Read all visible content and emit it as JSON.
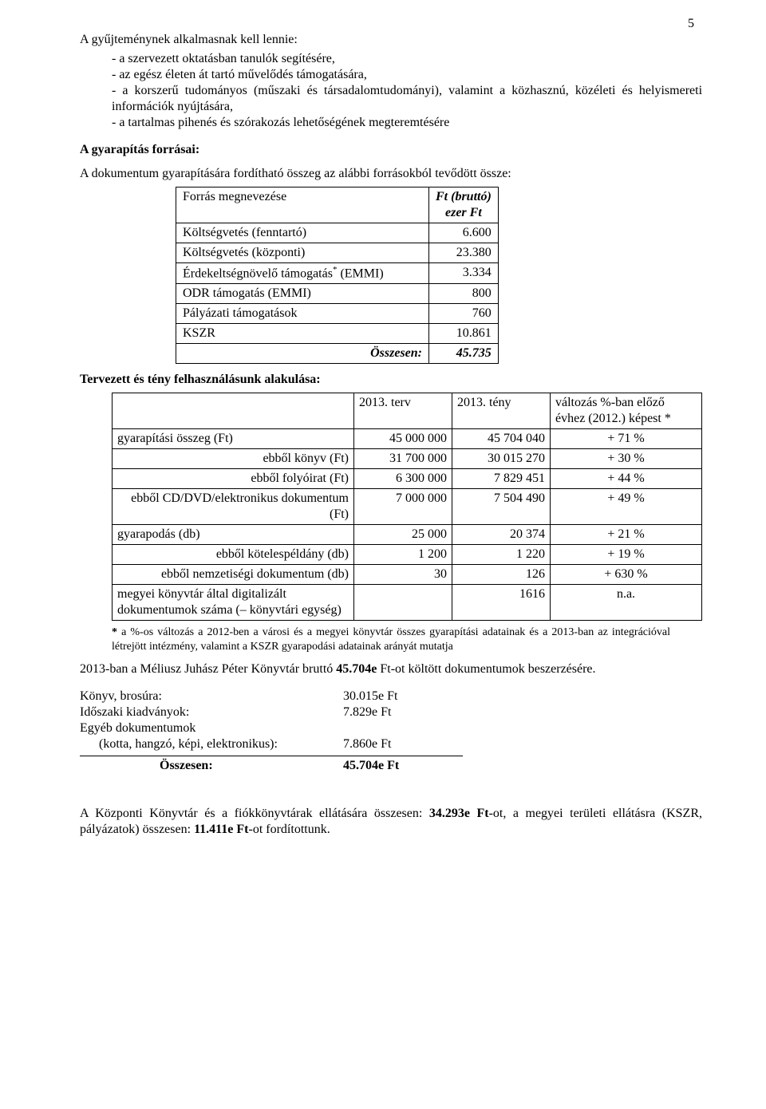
{
  "pageNumber": "5",
  "intro": {
    "lead": "A gyűjteménynek alkalmasnak kell lennie:",
    "items": [
      "a szervezett oktatásban tanulók segítésére,",
      "az egész életen át tartó művelődés támogatására,",
      "a korszerű tudományos (műszaki és társadalomtudományi), valamint a közhasznú, közéleti és helyismereti információk nyújtására,",
      "a tartalmas pihenés és szórakozás lehetőségének megteremtésére"
    ]
  },
  "sourcesHeading": "A gyarapítás forrásai:",
  "sourcesLead": "A dokumentum gyarapítására fordítható összeg az alábbi forrásokból tevődött össze:",
  "t1": {
    "headerLeft": "Forrás megnevezése",
    "headerRightLine1": "Ft (bruttó)",
    "headerRightLine2": "ezer Ft",
    "rows": [
      {
        "label": "Költségvetés (fenntartó)",
        "value": "6.600"
      },
      {
        "label": "Költségvetés (központi)",
        "value": "23.380"
      },
      {
        "label": "Érdekeltségnövelő támogatás<span class=\"sup\">*</span> (EMMI)",
        "html": true,
        "value": "3.334"
      },
      {
        "label": "ODR támogatás (EMMI)",
        "value": "800"
      },
      {
        "label": "Pályázati támogatások",
        "value": "760"
      },
      {
        "label": "KSZR",
        "value": "10.861"
      }
    ],
    "totalLabel": "Összesen:",
    "totalValue": "45.735"
  },
  "usageHeading": "Tervezett és tény felhasználásunk alakulása:",
  "t2": {
    "head": [
      "",
      "2013. terv",
      "2013. tény",
      "változás %-ban előző évhez (2012.) képest *"
    ],
    "rows": [
      {
        "label": "gyarapítási összeg (Ft)",
        "a": "45 000 000",
        "b": "45 704 040",
        "c": "+ 71 %"
      },
      {
        "label": "ebből könyv (Ft)",
        "indent": true,
        "a": "31 700 000",
        "b": "30 015 270",
        "c": "+ 30 %"
      },
      {
        "label": "ebből folyóirat (Ft)",
        "indent": true,
        "a": "6 300 000",
        "b": "7 829 451",
        "c": "+ 44 %"
      },
      {
        "label": "ebből CD/DVD/elektronikus dokumentum (Ft)",
        "indent": true,
        "a": "7 000 000",
        "b": "7 504 490",
        "c": "+ 49 %"
      },
      {
        "label": "gyarapodás (db)",
        "a": "25 000",
        "b": "20 374",
        "c": "+ 21 %"
      },
      {
        "label": "ebből kötelespéldány (db)",
        "indent": true,
        "a": "1 200",
        "b": "1 220",
        "c": "+ 19 %"
      },
      {
        "label": "ebből nemzetiségi dokumentum (db)",
        "indent": true,
        "a": "30",
        "b": "126",
        "c": "+ 630 %"
      },
      {
        "label": "megyei könyvtár által digitalizált dokumentumok száma (– könyvtári egység)",
        "a": "",
        "b": "1616",
        "c": "n.a.",
        "centerC": true
      }
    ]
  },
  "footnote": "* a %-os változás a 2012-ben a városi és a megyei könyvtár összes gyarapítási adatainak és a 2013-ban az integrációval létrejött intézmény, valamint a KSZR gyarapodási adatainak arányát mutatja",
  "spending2013": "2013-ban a Méliusz Juhász Péter Könyvtár bruttó <span class=\"bold\">45.704e</span> Ft-ot költött dokumentumok beszerzésére.",
  "spend": {
    "rows": [
      {
        "label": "Könyv, brosúra:",
        "value": "30.015e Ft"
      },
      {
        "label": "Időszaki kiadványok:",
        "value": "7.829e Ft"
      },
      {
        "label": "Egyéb dokumentumok",
        "value": ""
      },
      {
        "label": "&nbsp;&nbsp;&nbsp;&nbsp;&nbsp;&nbsp;(kotta, hangzó, képi, elektronikus):",
        "value": "7.860e Ft",
        "html": true
      }
    ],
    "totalLabel": "Összesen:",
    "totalValue": "45.704e Ft"
  },
  "closing": "A Központi Könyvtár és a fiókkönyvtárak ellátására összesen: <span class=\"bold\">34.293e Ft</span>-ot, a megyei területi ellátásra (KSZR, pályázatok) összesen: <span class=\"bold\">11.411e Ft</span>-ot fordítottunk."
}
